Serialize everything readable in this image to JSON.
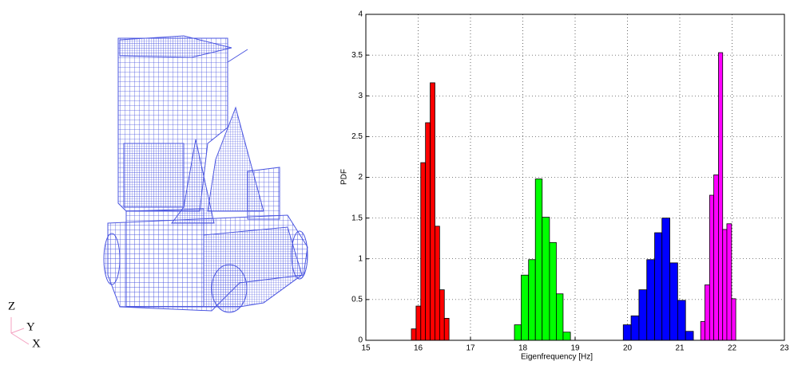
{
  "triad": {
    "labels": [
      "Z",
      "Y",
      "X"
    ]
  },
  "chart_data": {
    "type": "histogram",
    "xlabel": "Eigenfrequency [Hz]",
    "ylabel": "PDF",
    "xlim": [
      15,
      23
    ],
    "ylim": [
      0,
      4
    ],
    "xticks": [
      15,
      16,
      17,
      18,
      19,
      20,
      21,
      22,
      23
    ],
    "yticks": [
      0,
      0.5,
      1,
      1.5,
      2,
      2.5,
      3,
      3.5,
      4
    ],
    "grid": true,
    "series": [
      {
        "color": "#ff0000",
        "bins": [
          15.87,
          15.96,
          16.05,
          16.14,
          16.23,
          16.32,
          16.41,
          16.5,
          16.59
        ],
        "values": [
          0.14,
          0.42,
          2.18,
          2.67,
          3.16,
          1.4,
          0.62,
          0.27
        ]
      },
      {
        "color": "#00ff00",
        "bins": [
          17.84,
          17.97,
          18.11,
          18.24,
          18.37,
          18.51,
          18.64,
          18.77,
          18.91
        ],
        "values": [
          0.19,
          0.8,
          0.99,
          1.98,
          1.51,
          1.2,
          0.57,
          0.1
        ]
      },
      {
        "color": "#0000ff",
        "bins": [
          19.92,
          20.07,
          20.22,
          20.37,
          20.52,
          20.66,
          20.81,
          20.96,
          21.11,
          21.26
        ],
        "values": [
          0.19,
          0.3,
          0.62,
          0.99,
          1.32,
          1.5,
          0.95,
          0.49,
          0.11
        ]
      },
      {
        "color": "#ff00ff",
        "bins": [
          21.4,
          21.48,
          21.57,
          21.65,
          21.74,
          21.82,
          21.9,
          21.99,
          22.07
        ],
        "values": [
          0.23,
          0.68,
          1.78,
          2.03,
          3.53,
          1.36,
          1.43,
          0.51
        ]
      }
    ]
  }
}
